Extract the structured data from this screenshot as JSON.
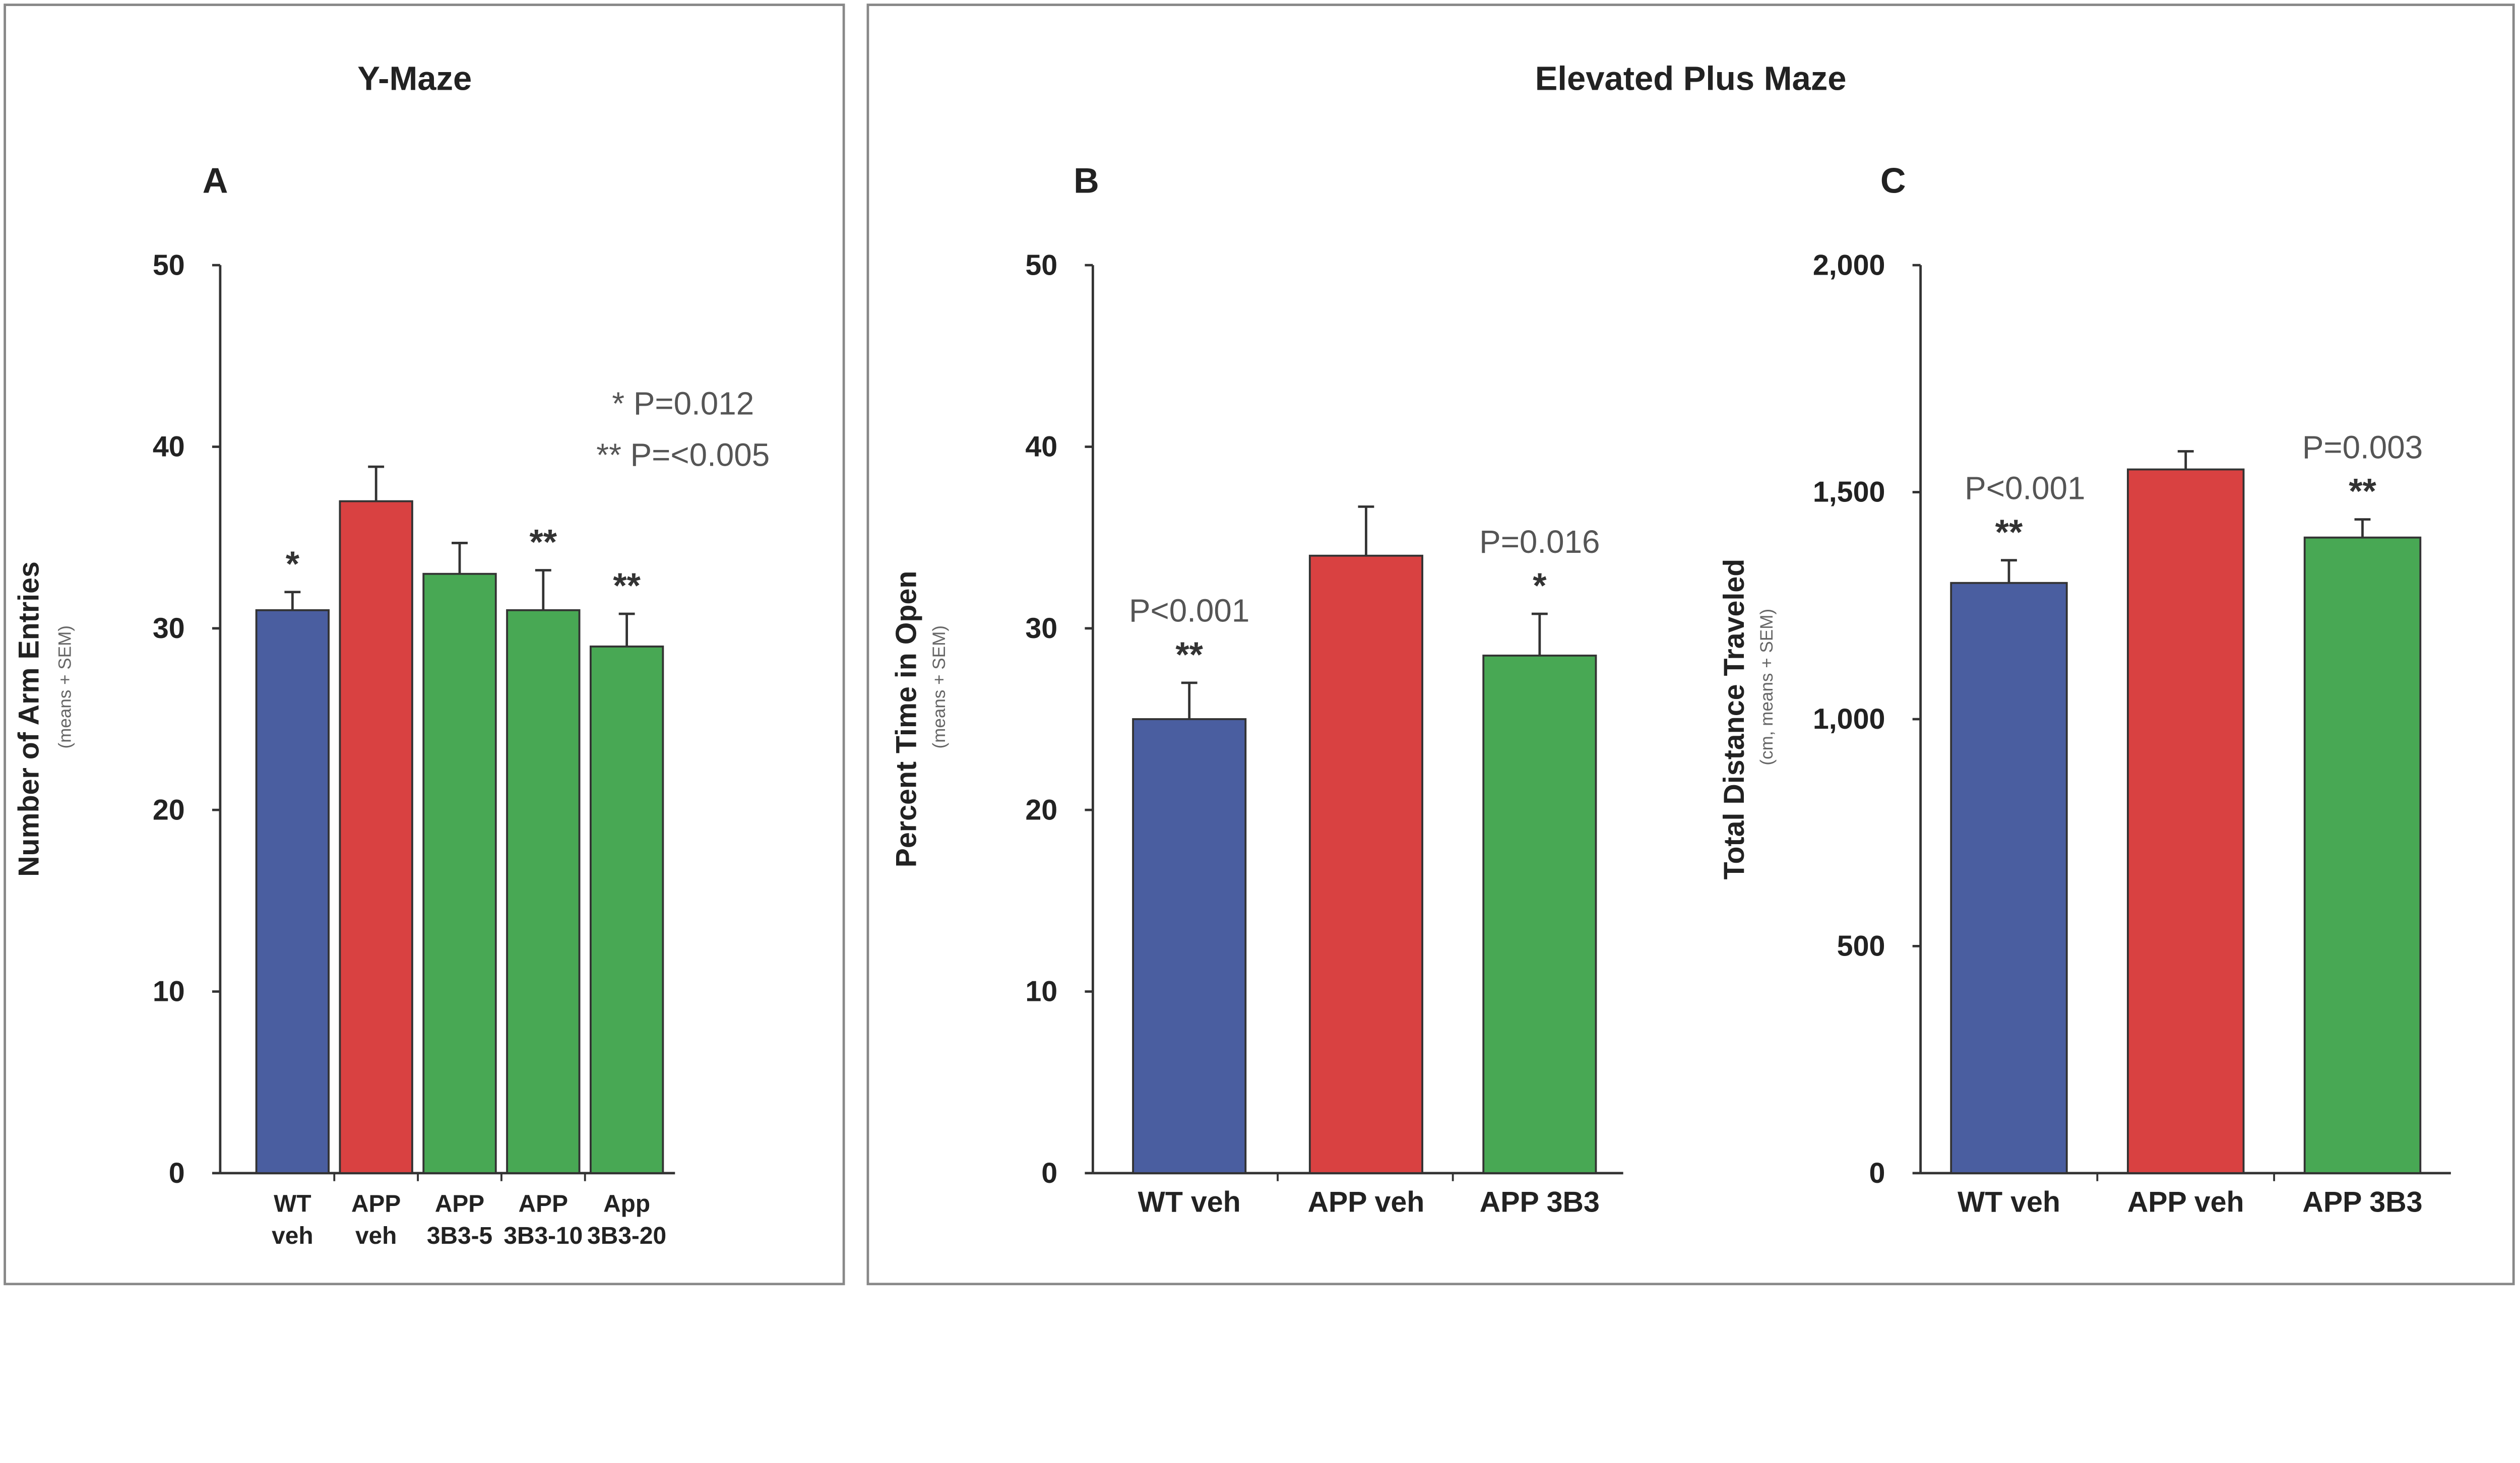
{
  "section_titles": {
    "left": "Y-Maze",
    "right": "Elevated Plus Maze"
  },
  "colors": {
    "WT": "#4a5ea0",
    "APP veh": "#d94141",
    "treated": "#48a854"
  },
  "chart_data": [
    {
      "type": "bar",
      "panel": "A",
      "ylabel": "Number of Arm Entries",
      "ylabel_sub": "(means + SEM)",
      "ylim": [
        0,
        50
      ],
      "yticks": [
        "0",
        "10",
        "20",
        "30",
        "40",
        "50"
      ],
      "categories": [
        [
          "WT",
          "veh"
        ],
        [
          "APP",
          "veh"
        ],
        [
          "APP",
          "3B3-5"
        ],
        [
          "APP",
          "3B3-10"
        ],
        [
          "App",
          "3B3-20"
        ]
      ],
      "values": [
        31,
        37,
        33,
        31,
        29
      ],
      "errors": [
        1,
        1.9,
        1.7,
        2.2,
        1.8
      ],
      "bar_colors": [
        "#4a5ea0",
        "#d94141",
        "#48a854",
        "#48a854",
        "#48a854"
      ],
      "stars": [
        "*",
        "",
        "",
        "**",
        "**"
      ],
      "pvalues": [
        "",
        "",
        "",
        "",
        ""
      ],
      "legend": [
        "*   P=0.012",
        "** P=<0.005"
      ]
    },
    {
      "type": "bar",
      "panel": "B",
      "ylabel": "Percent Time in Open",
      "ylabel_sub": "(means + SEM)",
      "ylim": [
        0,
        50
      ],
      "yticks": [
        "0",
        "10",
        "20",
        "30",
        "40",
        "50"
      ],
      "categories": [
        [
          "WT veh"
        ],
        [
          "APP veh"
        ],
        [
          "APP 3B3"
        ]
      ],
      "values": [
        25,
        34,
        28.5
      ],
      "errors": [
        2,
        2.7,
        2.3
      ],
      "bar_colors": [
        "#4a5ea0",
        "#d94141",
        "#48a854"
      ],
      "stars": [
        "**",
        "",
        "*"
      ],
      "pvalues": [
        "P<0.001",
        "",
        "P=0.016"
      ]
    },
    {
      "type": "bar",
      "panel": "C",
      "ylabel": "Total Distance Traveled",
      "ylabel_sub": "(cm, means + SEM)",
      "ylim": [
        0,
        2000
      ],
      "yticks": [
        "0",
        "500",
        "1,000",
        "1,500",
        "2,000"
      ],
      "categories": [
        [
          "WT veh"
        ],
        [
          "APP veh"
        ],
        [
          "APP 3B3"
        ]
      ],
      "values": [
        1300,
        1550,
        1400
      ],
      "errors": [
        50,
        40,
        40
      ],
      "bar_colors": [
        "#4a5ea0",
        "#d94141",
        "#48a854"
      ],
      "stars": [
        "**",
        "",
        "**"
      ],
      "pvalues": [
        "P<0.001",
        "",
        "P=0.003"
      ]
    }
  ]
}
